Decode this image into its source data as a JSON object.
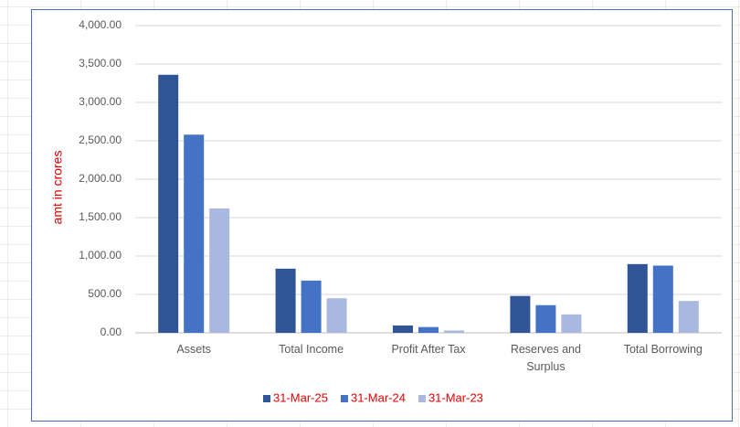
{
  "chart_data": {
    "type": "bar",
    "y_label": "amt in crores",
    "categories": [
      "Assets",
      "Total Income",
      "Profit After Tax",
      "Reserves and Surplus",
      "Total Borrowing"
    ],
    "series": [
      {
        "name": "31-Mar-25",
        "color": "#2f5597",
        "values": [
          3360,
          835,
          95,
          480,
          895
        ]
      },
      {
        "name": "31-Mar-24",
        "color": "#4472c4",
        "values": [
          2580,
          680,
          75,
          360,
          875
        ]
      },
      {
        "name": "31-Mar-23",
        "color": "#a9b8de",
        "values": [
          1620,
          450,
          30,
          240,
          415
        ]
      }
    ],
    "ylim": [
      0,
      4000
    ],
    "yticks": [
      {
        "value": 0,
        "label": "0.00"
      },
      {
        "value": 500,
        "label": "500.00"
      },
      {
        "value": 1000,
        "label": "1,000.00"
      },
      {
        "value": 1500,
        "label": "1,500.00"
      },
      {
        "value": 2000,
        "label": "2,000.00"
      },
      {
        "value": 2500,
        "label": "2,500.00"
      },
      {
        "value": 3000,
        "label": "3,000.00"
      },
      {
        "value": 3500,
        "label": "3,500.00"
      },
      {
        "value": 4000,
        "label": "4,000.00"
      }
    ],
    "grid": true,
    "legend": "bottom"
  }
}
